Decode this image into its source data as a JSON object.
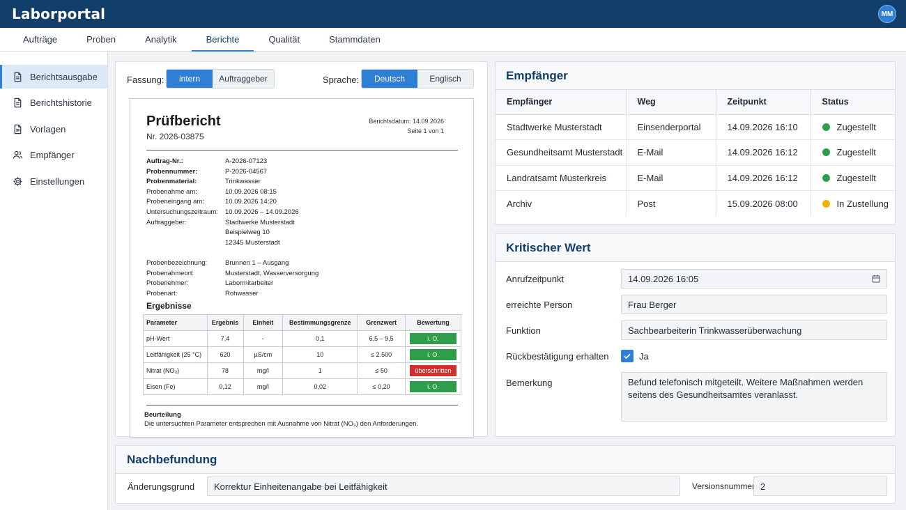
{
  "app": {
    "title": "Laborportal",
    "avatar_initials": "MM"
  },
  "nav": {
    "tabs": [
      {
        "label": "Aufträge"
      },
      {
        "label": "Proben"
      },
      {
        "label": "Analytik"
      },
      {
        "label": "Berichte"
      },
      {
        "label": "Qualität"
      },
      {
        "label": "Stammdaten"
      }
    ],
    "active": "Berichte"
  },
  "sidebar": {
    "items": [
      {
        "label": "Berichtsausgabe",
        "icon": "document-icon"
      },
      {
        "label": "Berichtshistorie",
        "icon": "document-icon"
      },
      {
        "label": "Vorlagen",
        "icon": "document-icon"
      },
      {
        "label": "Empfänger",
        "icon": "users-icon"
      },
      {
        "label": "Einstellungen",
        "icon": "gear-icon"
      }
    ],
    "active": "Berichtsausgabe"
  },
  "preview": {
    "fassung_label": "Fassung:",
    "fassung_options": [
      "intern",
      "Auftraggeber"
    ],
    "fassung_selected": "intern",
    "sprache_label": "Sprache:",
    "sprache_options": [
      "Deutsch",
      "Englisch"
    ],
    "sprache_selected": "Deutsch"
  },
  "report": {
    "title": "Prüfbericht",
    "number": "Nr. 2026-03875",
    "date_line": "Berichtsdatum: 14.09.2026",
    "page_line": "Seite 1 von 1",
    "fields": [
      {
        "key": "Auftrag-Nr.:",
        "value": "A-2026-07123",
        "bold": true
      },
      {
        "key": "Probennummer:",
        "value": "P-2026-04567",
        "bold": true
      },
      {
        "key": "Probenmaterial:",
        "value": "Trinkwasser",
        "bold": true
      },
      {
        "key": "Probenahme am:",
        "value": "10.09.2026 08:15",
        "bold": false
      },
      {
        "key": "Probeneingang am:",
        "value": "10.09.2026 14:20",
        "bold": false
      },
      {
        "key": "Untersuchungszeitraum:",
        "value": "10.09.2026 – 14.09.2026",
        "bold": false
      },
      {
        "key": "Auftraggeber:",
        "value": "Stadtwerke Musterstadt",
        "bold": false
      },
      {
        "key": "",
        "value": "Beispielweg 10",
        "bold": false
      },
      {
        "key": "",
        "value": "12345 Musterstadt",
        "bold": false
      },
      {
        "key": "",
        "value": "",
        "bold": false
      },
      {
        "key": "Probenbezeichnung:",
        "value": "Brunnen 1 – Ausgang",
        "bold": false
      },
      {
        "key": "Probenahmeort:",
        "value": "Musterstadt, Wasserversorgung",
        "bold": false
      },
      {
        "key": "Probenehmer:",
        "value": "Labormitarbeiter",
        "bold": false
      },
      {
        "key": "Probenart:",
        "value": "Rohwasser",
        "bold": false
      }
    ],
    "results_heading": "Ergebnisse",
    "results_columns": [
      "Parameter",
      "Ergebnis",
      "Einheit",
      "Bestimmungsgrenze",
      "Grenzwert",
      "Bewertung"
    ],
    "results": [
      {
        "parameter": "pH-Wert",
        "ergebnis": "7,4",
        "einheit": "-",
        "bg": "0,1",
        "grenzwert": "6,5 – 9,5",
        "bewertung": "i. O.",
        "status": "ok"
      },
      {
        "parameter": "Leitfähigkeit (25 °C)",
        "ergebnis": "620",
        "einheit": "µS/cm",
        "bg": "10",
        "grenzwert": "≤ 2.500",
        "bewertung": "i. O.",
        "status": "ok"
      },
      {
        "parameter": "Nitrat (NO₃)",
        "ergebnis": "78",
        "einheit": "mg/l",
        "bg": "1",
        "grenzwert": "≤ 50",
        "bewertung": "überschritten",
        "status": "bad"
      },
      {
        "parameter": "Eisen (Fe)",
        "ergebnis": "0,12",
        "einheit": "mg/l",
        "bg": "0,02",
        "grenzwert": "≤ 0,20",
        "bewertung": "i. O.",
        "status": "ok"
      }
    ],
    "assessment_heading": "Beurteilung",
    "assessment_text": "Die untersuchten Parameter entsprechen mit Ausnahme von Nitrat (NO₃) den Anforderungen."
  },
  "recipients": {
    "title": "Empfänger",
    "columns": [
      "Empfänger",
      "Weg",
      "Zeitpunkt",
      "Status"
    ],
    "rows": [
      {
        "name": "Stadtwerke Musterstadt",
        "weg": "Einsenderportal",
        "zeitpunkt": "14.09.2026 16:10",
        "status": "Zugestellt",
        "status_color": "#2e9e4a"
      },
      {
        "name": "Gesundheitsamt Musterstadt",
        "weg": "E-Mail",
        "zeitpunkt": "14.09.2026 16:12",
        "status": "Zugestellt",
        "status_color": "#2e9e4a"
      },
      {
        "name": "Landratsamt Musterkreis",
        "weg": "E-Mail",
        "zeitpunkt": "14.09.2026 16:12",
        "status": "Zugestellt",
        "status_color": "#2e9e4a"
      },
      {
        "name": "Archiv",
        "weg": "Post",
        "zeitpunkt": "15.09.2026 08:00",
        "status": "In Zustellung",
        "status_color": "#f0b400"
      }
    ]
  },
  "critical": {
    "title": "Kritischer Wert",
    "call_time_label": "Anrufzeitpunkt",
    "call_time_value": "14.09.2026 16:05",
    "person_label": "erreichte Person",
    "person_value": "Frau Berger",
    "function_label": "Funktion",
    "function_value": "Sachbearbeiterin Trinkwasserüberwachung",
    "confirm_label": "Rückbestätigung erhalten",
    "confirm_text": "Ja",
    "confirm_checked": true,
    "remark_label": "Bemerkung",
    "remark_value": "Befund telefonisch mitgeteilt. Weitere Maßnahmen werden seitens des Gesundheitsamtes veranlasst."
  },
  "followup": {
    "title": "Nachbefundung",
    "reason_label": "Änderungsgrund",
    "reason_value": "Korrektur Einheitenangabe bei Leitfähigkeit",
    "version_label": "Versionsnummer",
    "version_value": "2"
  },
  "colors": {
    "topbar": "#123e6b",
    "accent": "#2f7fd4",
    "ok": "#2e9e4a",
    "bad": "#d32f2f",
    "pending": "#f0b400"
  }
}
